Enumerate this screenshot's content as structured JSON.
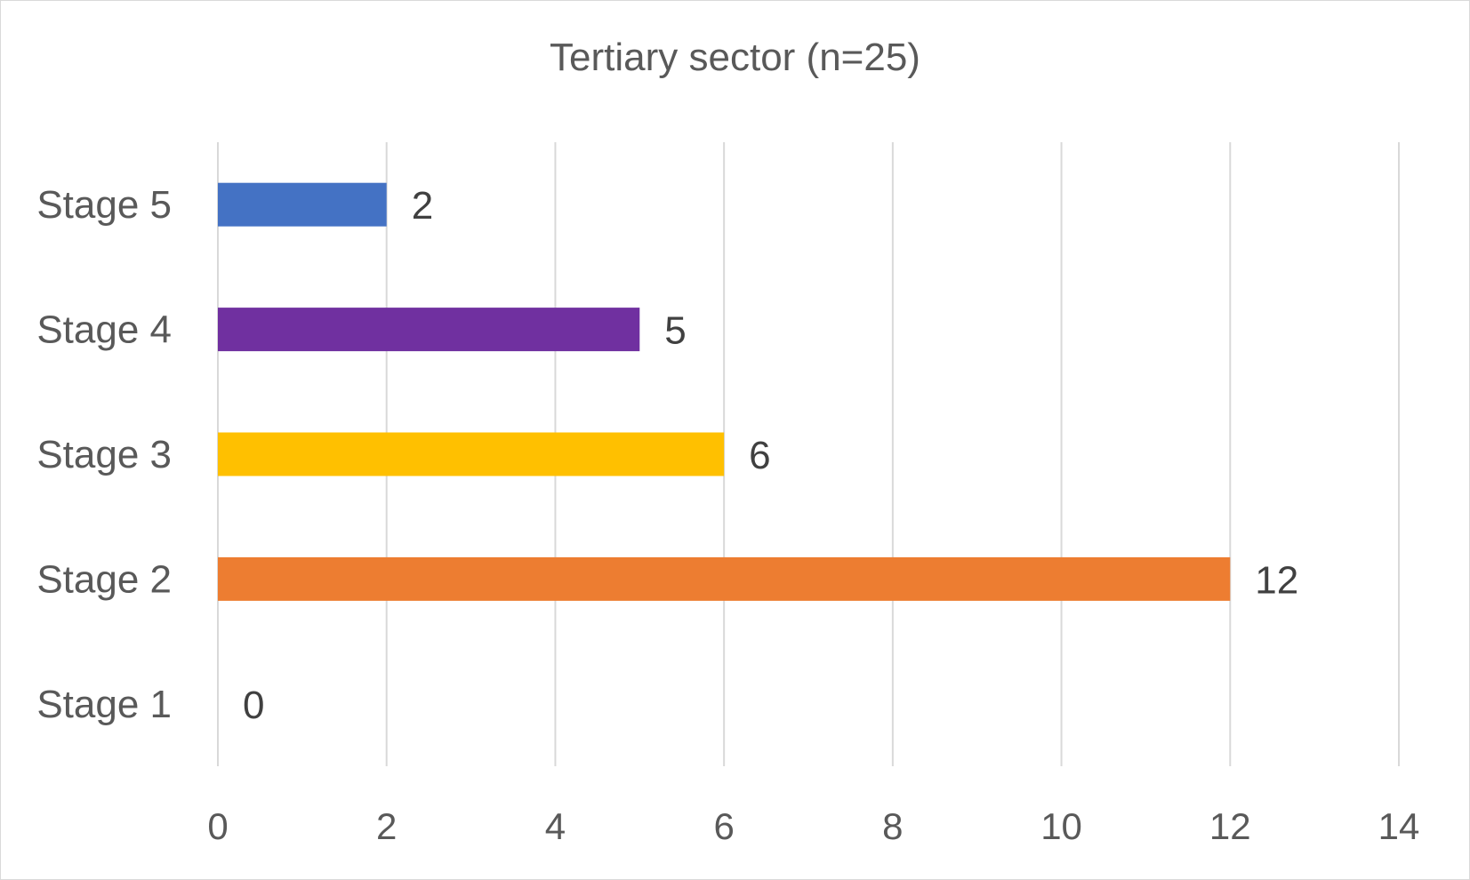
{
  "chart_data": {
    "type": "bar",
    "orientation": "horizontal",
    "title": "Tertiary sector (n=25)",
    "categories": [
      "Stage 5",
      "Stage 4",
      "Stage 3",
      "Stage 2",
      "Stage 1"
    ],
    "values": [
      2,
      5,
      6,
      12,
      0
    ],
    "colors": [
      "#4472c4",
      "#7030a0",
      "#ffc000",
      "#ed7d31",
      "#a5a5a5"
    ],
    "xlim": [
      0,
      14
    ],
    "xticks": [
      0,
      2,
      4,
      6,
      8,
      10,
      12,
      14
    ],
    "xlabel": "",
    "ylabel": "",
    "grid": true,
    "legend": "none",
    "data_labels": true
  }
}
